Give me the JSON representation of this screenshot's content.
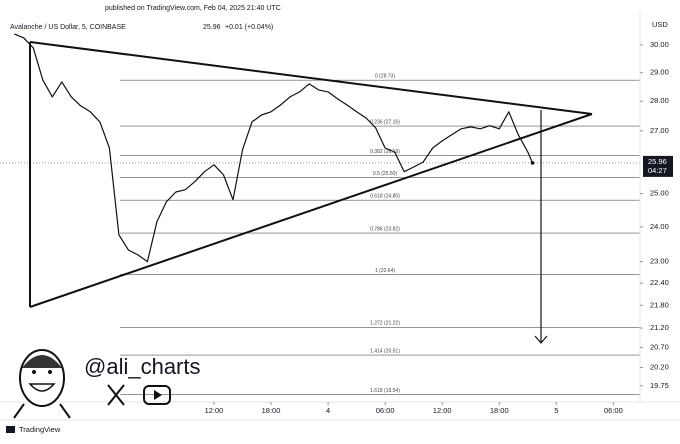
{
  "header": {
    "published": "published on TradingView.com, Feb 04, 2025 21:40 UTC"
  },
  "chart_data": {
    "type": "line",
    "title": "Avalanche / US Dollar, 5, COINBASE",
    "last_price": 25.96,
    "change": "+0.01 (+0.04%)",
    "countdown": "04:27",
    "currency": "USD",
    "log_scale": true,
    "color": "#111111",
    "x": [
      -9,
      -8,
      -7,
      -6,
      -5,
      -4,
      -3,
      -2,
      -1,
      0,
      1,
      2,
      3,
      4,
      5,
      6,
      7,
      8,
      9,
      10,
      11,
      12,
      13,
      14,
      15,
      16,
      17,
      18,
      19,
      20,
      21,
      22,
      23,
      24,
      25,
      26,
      27,
      28,
      29,
      30,
      31,
      32,
      33,
      34,
      35,
      36,
      37,
      38,
      39,
      40,
      41,
      42,
      43,
      44,
      45,
      45.5
    ],
    "values": [
      30.41,
      30.26,
      29.89,
      28.74,
      28.15,
      28.67,
      28.15,
      27.84,
      27.64,
      27.3,
      26.44,
      23.77,
      23.33,
      23.19,
      23.0,
      24.15,
      24.75,
      25.05,
      25.12,
      25.37,
      25.68,
      25.9,
      25.58,
      24.81,
      26.38,
      27.3,
      27.53,
      27.64,
      27.87,
      28.15,
      28.32,
      28.6,
      28.39,
      28.32,
      28.08,
      27.87,
      27.64,
      27.43,
      27.1,
      26.44,
      26.31,
      25.68,
      25.83,
      25.99,
      26.44,
      26.67,
      26.87,
      27.07,
      27.13,
      27.07,
      27.17,
      27.07,
      27.64,
      26.87,
      26.31,
      25.96
    ],
    "xlim": [
      -10.5,
      56.8
    ],
    "ylim": [
      19.41,
      31.7
    ],
    "xticks": [
      {
        "value": 12,
        "label": "12:00"
      },
      {
        "value": 18,
        "label": "18:00"
      },
      {
        "value": 24,
        "label": "4"
      },
      {
        "value": 30,
        "label": "06:00"
      },
      {
        "value": 36,
        "label": "12:00"
      },
      {
        "value": 42,
        "label": "18:00"
      },
      {
        "value": 48,
        "label": "5"
      },
      {
        "value": 54,
        "label": "06:00"
      }
    ],
    "yticks": [
      {
        "value": 30,
        "label": "30.00"
      },
      {
        "value": 29,
        "label": "29.00"
      },
      {
        "value": 28,
        "label": "28.00"
      },
      {
        "value": 27,
        "label": "27.00"
      },
      {
        "value": 25,
        "label": "25.00"
      },
      {
        "value": 24,
        "label": "24.00"
      },
      {
        "value": 23,
        "label": "23.00"
      },
      {
        "value": 22.4,
        "label": "22.40"
      },
      {
        "value": 21.8,
        "label": "21.80"
      },
      {
        "value": 21.2,
        "label": "21.20"
      },
      {
        "value": 20.7,
        "label": "20.70"
      },
      {
        "value": 20.2,
        "label": "20.20"
      },
      {
        "value": 19.75,
        "label": "19.75"
      }
    ],
    "fib_levels": [
      {
        "value": 28.73,
        "label": "0 (28.73)"
      },
      {
        "value": 27.16,
        "label": "0.236 (27.16)"
      },
      {
        "value": 26.19,
        "label": "0.382 (26.19)"
      },
      {
        "value": 25.5,
        "label": "0.5 (25.50)"
      },
      {
        "value": 24.8,
        "label": "0.618 (24.80)"
      },
      {
        "value": 23.82,
        "label": "0.786 (23.82)"
      },
      {
        "value": 22.64,
        "label": "1 (22.64)"
      },
      {
        "value": 21.22,
        "label": "1.272 (21.22)"
      },
      {
        "value": 20.51,
        "label": "1.414 (20.51)"
      },
      {
        "value": 19.54,
        "label": "1.618 (19.54)"
      }
    ]
  },
  "watermark": {
    "handle": "@ali_charts"
  },
  "footer": {
    "brand": "TradingView"
  }
}
